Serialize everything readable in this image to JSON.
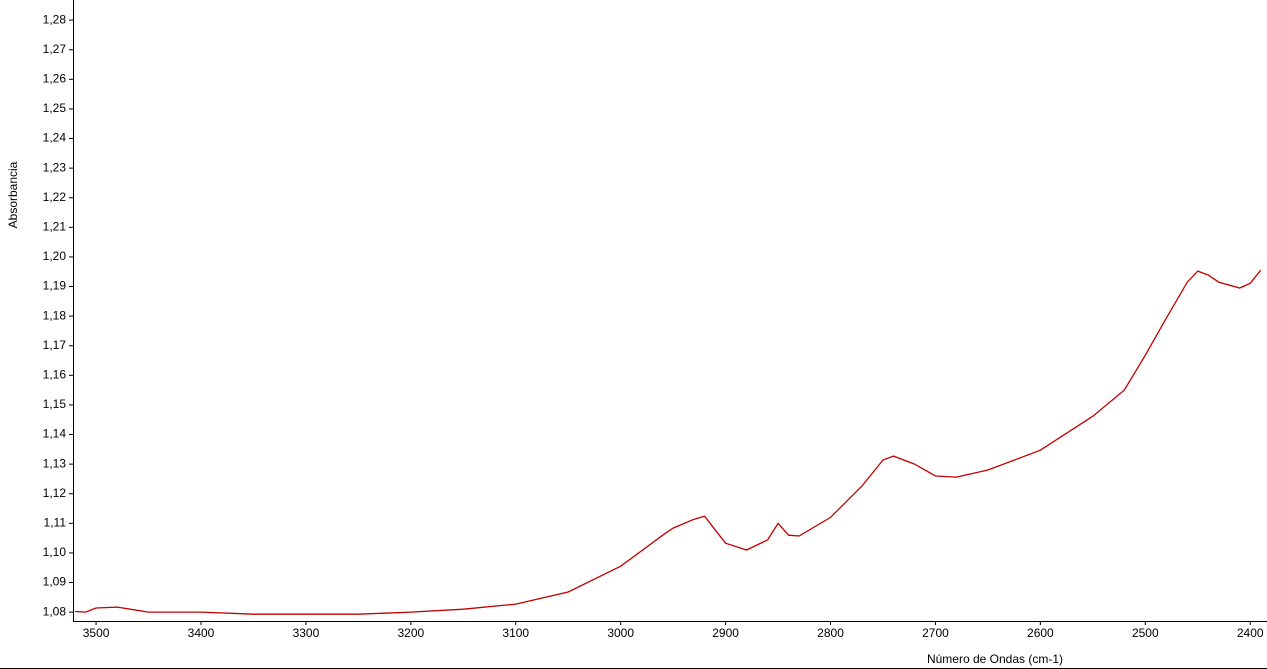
{
  "chart_data": {
    "type": "line",
    "ylabel": "Absorbancia",
    "xlabel": "Número de Ondas (cm-1)",
    "x": [
      3520,
      3510,
      3500,
      3480,
      3450,
      3400,
      3350,
      3300,
      3250,
      3200,
      3150,
      3100,
      3050,
      3000,
      2960,
      2950,
      2930,
      2920,
      2910,
      2900,
      2880,
      2860,
      2850,
      2840,
      2830,
      2800,
      2770,
      2750,
      2740,
      2720,
      2700,
      2680,
      2650,
      2600,
      2550,
      2520,
      2500,
      2480,
      2460,
      2450,
      2440,
      2430,
      2410,
      2400,
      2390
    ],
    "series": [
      {
        "name": "Absorbancia",
        "color": "#c00000",
        "values": [
          1.0802,
          1.08,
          1.0814,
          1.0817,
          1.08,
          1.08,
          1.0793,
          1.0793,
          1.0793,
          1.08,
          1.081,
          1.0827,
          1.0868,
          1.0955,
          1.106,
          1.1084,
          1.1114,
          1.1124,
          1.1078,
          1.1033,
          1.101,
          1.1044,
          1.11,
          1.106,
          1.1057,
          1.112,
          1.1226,
          1.1314,
          1.1327,
          1.13,
          1.126,
          1.1256,
          1.128,
          1.1347,
          1.1462,
          1.155,
          1.1668,
          1.1793,
          1.1915,
          1.1952,
          1.1939,
          1.1915,
          1.1895,
          1.1911,
          1.1955
        ]
      }
    ],
    "xlim": [
      3522,
      2384
    ],
    "ylim": [
      1.077,
      1.2868
    ],
    "xticks": [
      3500,
      3400,
      3300,
      3200,
      3100,
      3000,
      2900,
      2800,
      2700,
      2600,
      2500,
      2400
    ],
    "yticks": [
      {
        "value": 1.08,
        "label": "1,08"
      },
      {
        "value": 1.09,
        "label": "1,09"
      },
      {
        "value": 1.1,
        "label": "1,10"
      },
      {
        "value": 1.11,
        "label": "1,11"
      },
      {
        "value": 1.12,
        "label": "1,12"
      },
      {
        "value": 1.13,
        "label": "1,13"
      },
      {
        "value": 1.14,
        "label": "1,14"
      },
      {
        "value": 1.15,
        "label": "1,15"
      },
      {
        "value": 1.16,
        "label": "1,16"
      },
      {
        "value": 1.17,
        "label": "1,17"
      },
      {
        "value": 1.18,
        "label": "1,18"
      },
      {
        "value": 1.19,
        "label": "1,19"
      },
      {
        "value": 1.2,
        "label": "1,20"
      },
      {
        "value": 1.21,
        "label": "1,21"
      },
      {
        "value": 1.22,
        "label": "1,22"
      },
      {
        "value": 1.23,
        "label": "1,23"
      },
      {
        "value": 1.24,
        "label": "1,24"
      },
      {
        "value": 1.25,
        "label": "1,25"
      },
      {
        "value": 1.26,
        "label": "1,26"
      },
      {
        "value": 1.27,
        "label": "1,27"
      },
      {
        "value": 1.28,
        "label": "1,28"
      }
    ]
  }
}
